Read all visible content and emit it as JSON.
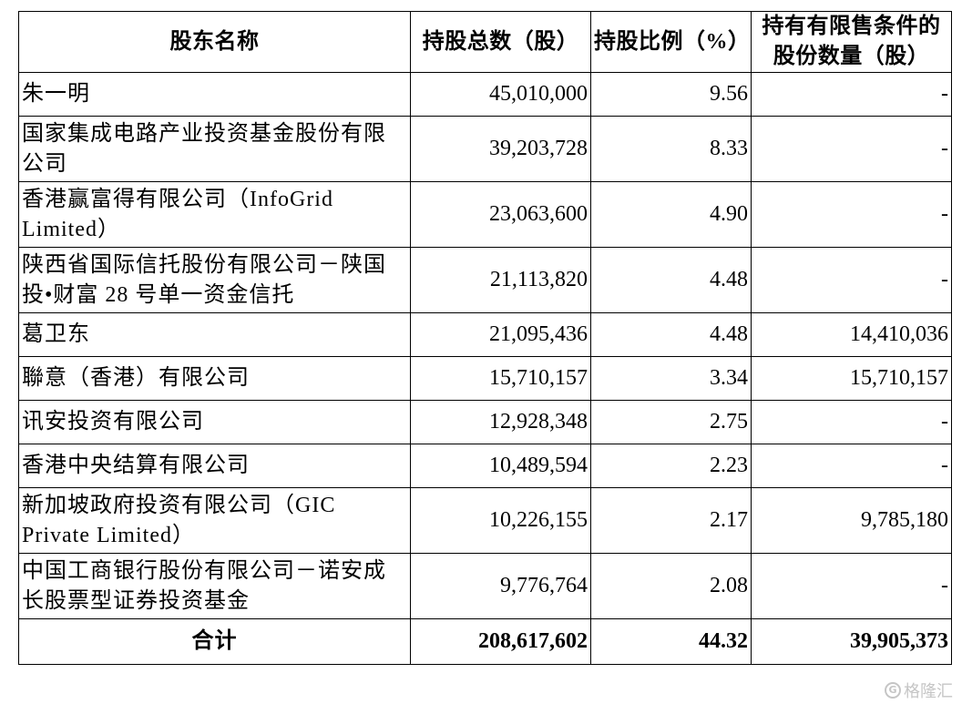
{
  "table": {
    "headers": {
      "name": "股东名称",
      "total": "持股总数（股）",
      "ratio": "持股比例（%）",
      "restricted": "持有有限售条件的股份数量（股）"
    },
    "rows": [
      {
        "name": "朱一明",
        "total": "45,010,000",
        "ratio": "9.56",
        "restricted": "-"
      },
      {
        "name": "国家集成电路产业投资基金股份有限公司",
        "total": "39,203,728",
        "ratio": "8.33",
        "restricted": "-"
      },
      {
        "name": "香港赢富得有限公司（InfoGrid Limited）",
        "total": "23,063,600",
        "ratio": "4.90",
        "restricted": "-"
      },
      {
        "name": "陕西省国际信托股份有限公司－陕国投•财富 28 号单一资金信托",
        "total": "21,113,820",
        "ratio": "4.48",
        "restricted": "-"
      },
      {
        "name": "葛卫东",
        "total": "21,095,436",
        "ratio": "4.48",
        "restricted": "14,410,036"
      },
      {
        "name": "聯意（香港）有限公司",
        "total": "15,710,157",
        "ratio": "3.34",
        "restricted": "15,710,157"
      },
      {
        "name": "讯安投资有限公司",
        "total": "12,928,348",
        "ratio": "2.75",
        "restricted": "-"
      },
      {
        "name": "香港中央结算有限公司",
        "total": "10,489,594",
        "ratio": "2.23",
        "restricted": "-"
      },
      {
        "name": "新加坡政府投资有限公司（GIC Private Limited）",
        "total": "10,226,155",
        "ratio": "2.17",
        "restricted": "9,785,180"
      },
      {
        "name": "中国工商银行股份有限公司－诺安成长股票型证券投资基金",
        "total": "9,776,764",
        "ratio": "2.08",
        "restricted": "-"
      }
    ],
    "total_row": {
      "name": "合计",
      "total": "208,617,602",
      "ratio": "44.32",
      "restricted": "39,905,373"
    }
  },
  "watermark": {
    "text": "格隆汇",
    "logo": "G"
  }
}
